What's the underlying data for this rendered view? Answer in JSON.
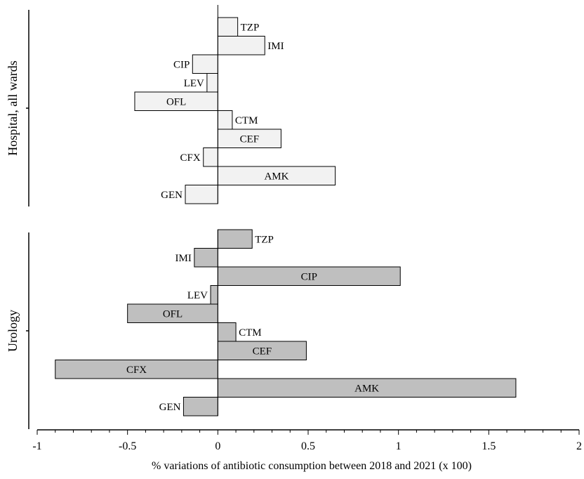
{
  "chart_data": {
    "type": "bar",
    "orientation": "horizontal",
    "xlabel": "% variations of antibiotic consumption  between 2018 and 2021 (x 100)",
    "xlim": [
      -1,
      2
    ],
    "xticks": [
      "-1",
      "-0.5",
      "0",
      "0.5",
      "1",
      "1.5",
      "2"
    ],
    "groups": [
      {
        "name": "Hospital, all wards",
        "color": "#f2f2f2",
        "categories": [
          "TZP",
          "IMI",
          "CIP",
          "LEV",
          "OFL",
          "CTM",
          "CEF",
          "CFX",
          "AMK",
          "GEN"
        ],
        "values": [
          0.11,
          0.26,
          -0.14,
          -0.06,
          -0.46,
          0.08,
          0.35,
          -0.08,
          0.65,
          -0.18
        ]
      },
      {
        "name": "Urology",
        "color": "#bfbfbf",
        "categories": [
          "TZP",
          "IMI",
          "CIP",
          "LEV",
          "OFL",
          "CTM",
          "CEF",
          "CFX",
          "AMK",
          "GEN"
        ],
        "values": [
          0.19,
          -0.13,
          1.01,
          -0.04,
          -0.5,
          0.1,
          0.49,
          -0.9,
          1.65,
          -0.19
        ]
      }
    ]
  }
}
